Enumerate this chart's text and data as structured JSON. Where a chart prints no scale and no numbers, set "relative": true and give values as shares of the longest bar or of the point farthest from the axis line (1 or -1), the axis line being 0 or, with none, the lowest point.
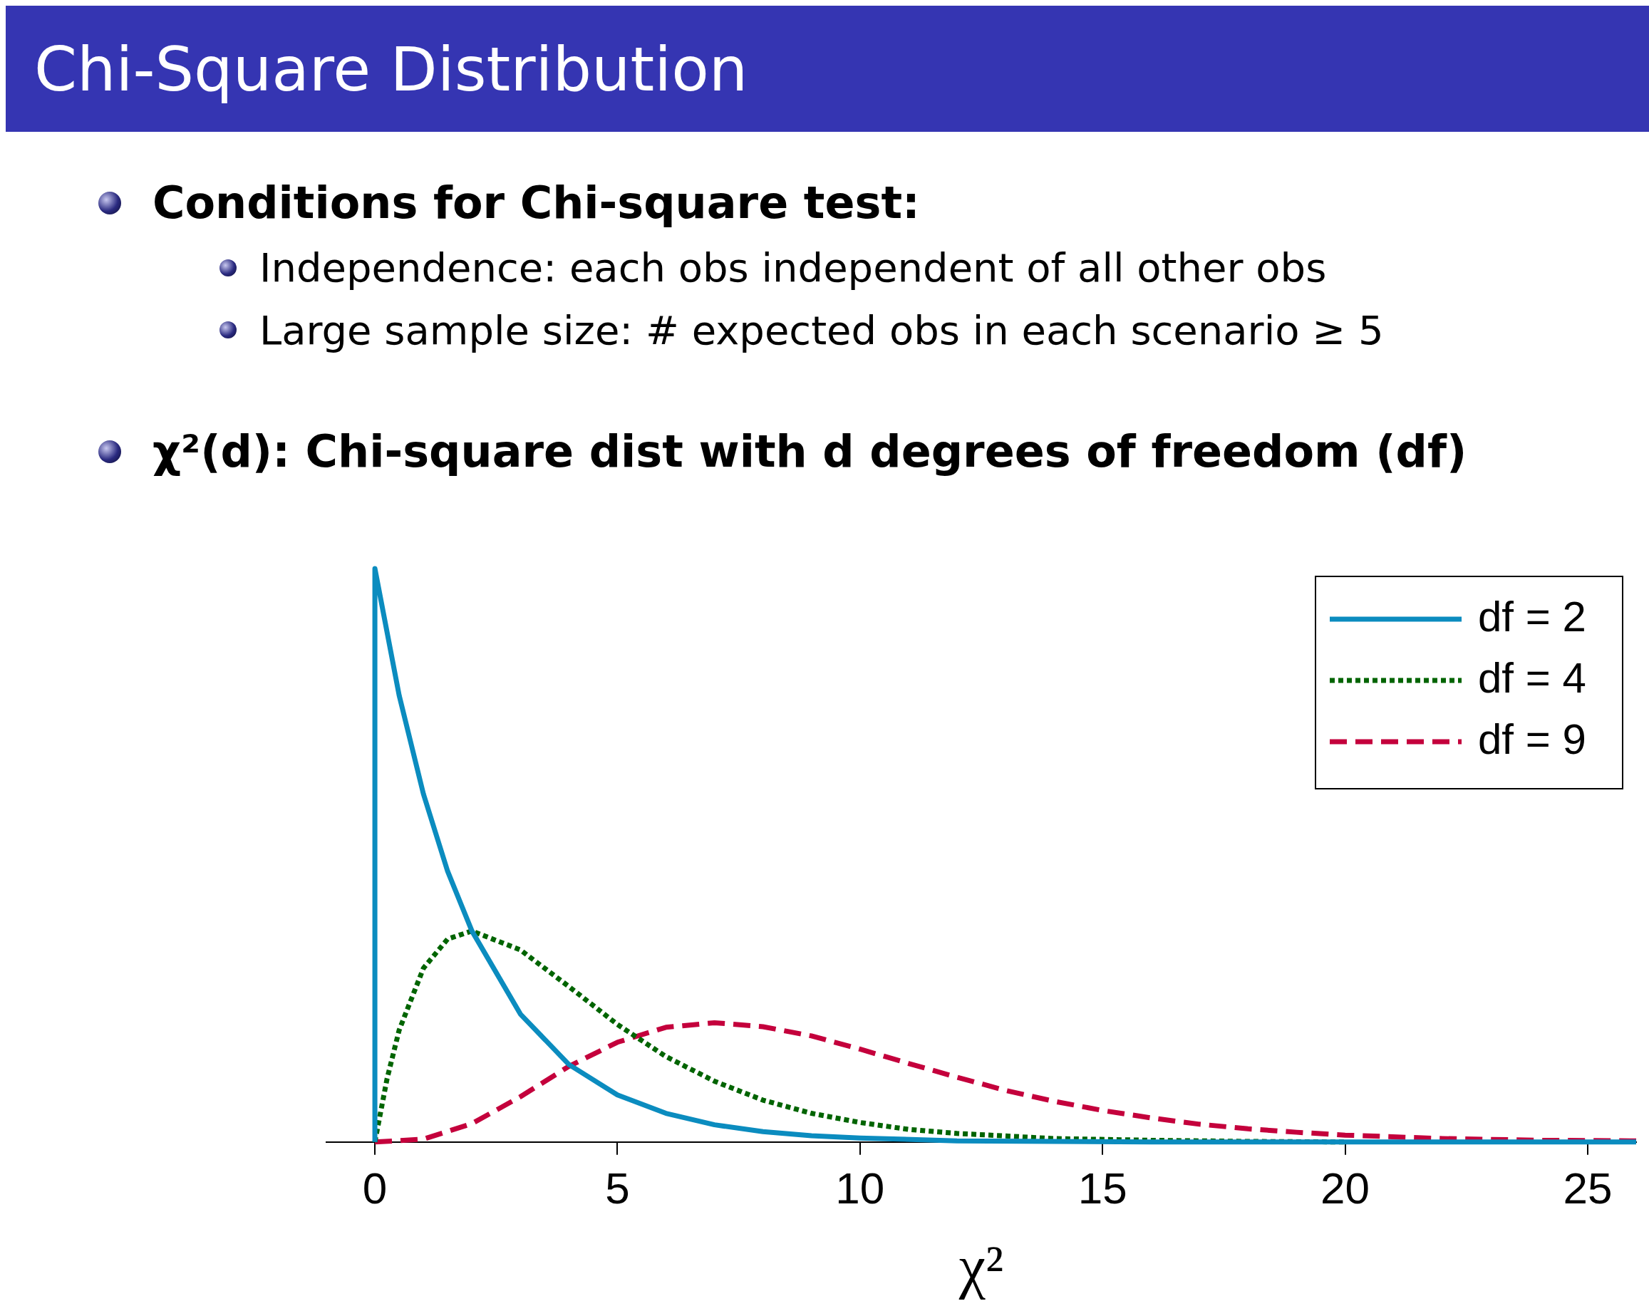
{
  "chart_data": {
    "type": "line",
    "title": "Chi-Square Distribution",
    "xlabel": "χ²",
    "relative": true,
    "annotations": [
      "Conditions for Chi-square test:",
      "Independence: each obs independent of all other obs",
      "Large sample size: # expected obs in each scenario ≥ 5",
      "χ²(d): Chi-square dist with d degrees of freedom (df)"
    ],
    "xlim": [
      -1,
      26
    ],
    "xticks": [
      0,
      5,
      10,
      15,
      20,
      25
    ],
    "legend": "top right",
    "marker": "none",
    "grid": false,
    "series": [
      {
        "name": "df = 2",
        "color": "#0b8cbf",
        "line_style": "solid",
        "x": [
          0,
          0,
          0.5,
          1,
          1.5,
          2,
          3,
          4,
          5,
          6,
          7,
          8,
          9,
          10,
          12,
          14,
          16,
          18,
          20,
          22,
          24,
          26
        ],
        "values": [
          0,
          1,
          0.779,
          0.607,
          0.472,
          0.368,
          0.223,
          0.135,
          0.082,
          0.05,
          0.03,
          0.018,
          0.011,
          0.007,
          0.002,
          0.001,
          0,
          0,
          0,
          0,
          0,
          0
        ]
      },
      {
        "name": "df = 4",
        "color": "#006400",
        "line_style": "dotted",
        "x": [
          0,
          0.25,
          0.5,
          1,
          1.5,
          2,
          3,
          4,
          5,
          6,
          7,
          8,
          9,
          10,
          11,
          12,
          14,
          16,
          18,
          20
        ],
        "values": [
          0,
          0.11,
          0.195,
          0.303,
          0.354,
          0.368,
          0.335,
          0.271,
          0.205,
          0.149,
          0.106,
          0.073,
          0.05,
          0.034,
          0.022,
          0.015,
          0.006,
          0.003,
          0.001,
          0
        ]
      },
      {
        "name": "df = 9",
        "color": "#c4003c",
        "line_style": "dashed",
        "x": [
          0,
          1,
          2,
          3,
          4,
          5,
          6,
          7,
          8,
          9,
          10,
          11,
          12,
          13,
          14,
          15,
          16,
          17,
          18,
          19,
          20,
          22,
          24,
          26
        ],
        "values": [
          0,
          0.005,
          0.032,
          0.079,
          0.132,
          0.174,
          0.2,
          0.208,
          0.201,
          0.185,
          0.162,
          0.137,
          0.113,
          0.09,
          0.071,
          0.055,
          0.042,
          0.031,
          0.023,
          0.017,
          0.012,
          0.006,
          0.003,
          0.002
        ]
      }
    ]
  }
}
